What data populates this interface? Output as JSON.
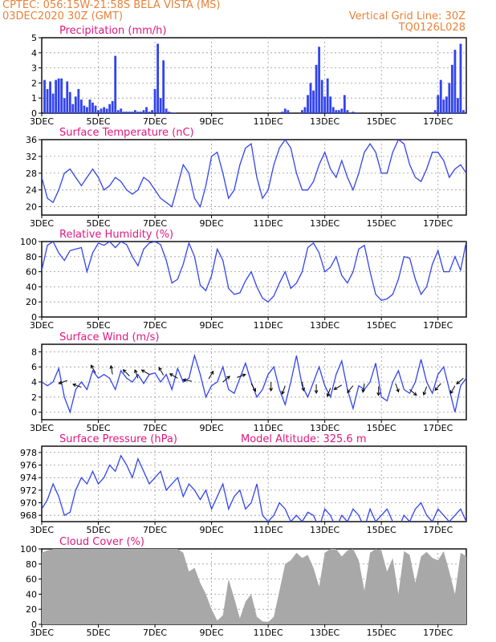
{
  "header": {
    "line1_left": "CPTEC:   056:15W-21:58S   BELA VISTA (MS)",
    "line2_left": "03DEC2020 30Z (GMT)",
    "line1_right": "Vertical Grid Line: 30Z",
    "line2_right": "TQ0126L028"
  },
  "colors": {
    "header": "#e8823a",
    "title": "#e0187f",
    "series": "#3344ee",
    "cloud": "#a8a8a8",
    "grid": "#999999"
  },
  "x_ticks": [
    "3DEC",
    "5DEC",
    "7DEC",
    "9DEC",
    "11DEC",
    "13DEC",
    "15DEC",
    "17DEC"
  ],
  "x_tick_days": [
    0,
    2,
    4,
    6,
    8,
    10,
    12,
    14
  ],
  "x_range_days": [
    0,
    15.0
  ],
  "chart_data": [
    {
      "id": "precip",
      "type": "bar",
      "title": "Precipitation (mm/h)",
      "ylim": [
        0,
        5
      ],
      "yticks": [
        0,
        1,
        2,
        3,
        4,
        5
      ],
      "x_days": [
        0.1,
        0.2,
        0.3,
        0.4,
        0.5,
        0.6,
        0.7,
        0.8,
        0.9,
        1.0,
        1.1,
        1.2,
        1.3,
        1.4,
        1.5,
        1.6,
        1.7,
        1.8,
        1.9,
        2.0,
        2.1,
        2.2,
        2.3,
        2.4,
        2.5,
        2.6,
        2.7,
        2.8,
        2.9,
        3.0,
        3.1,
        3.2,
        3.3,
        3.4,
        3.5,
        3.6,
        3.7,
        3.8,
        3.9,
        4.0,
        4.1,
        4.2,
        4.3,
        4.4,
        4.5,
        4.6,
        4.7,
        8.5,
        8.6,
        8.7,
        9.2,
        9.3,
        9.4,
        9.5,
        9.6,
        9.7,
        9.8,
        9.9,
        10.0,
        10.1,
        10.2,
        10.3,
        10.4,
        10.5,
        10.6,
        10.7,
        10.8,
        11.0,
        11.2,
        13.9,
        14.0,
        14.1,
        14.2,
        14.3,
        14.4,
        14.5,
        14.6,
        14.7,
        14.8,
        14.9
      ],
      "values": [
        2.2,
        1.6,
        2.1,
        1.3,
        2.2,
        2.3,
        2.3,
        1.0,
        2.1,
        1.4,
        0.6,
        1.1,
        1.6,
        0.9,
        0.5,
        0.4,
        0.9,
        0.7,
        0.5,
        0.2,
        0.3,
        0.4,
        0.3,
        0.6,
        0.8,
        3.8,
        0.2,
        0.3,
        0.1,
        0.1,
        0.1,
        0.1,
        0.2,
        0.1,
        0.1,
        0.2,
        0.4,
        0.1,
        0.2,
        1.6,
        4.6,
        1.0,
        3.5,
        0.3,
        0.1,
        0.05,
        0.02,
        0.1,
        0.3,
        0.2,
        0.2,
        0.4,
        1.2,
        2.0,
        1.5,
        3.2,
        4.4,
        2.2,
        1.1,
        2.3,
        1.1,
        0.4,
        0.2,
        0.2,
        0.3,
        1.2,
        0.2,
        0.1,
        0.05,
        0.2,
        1.2,
        2.2,
        0.9,
        1.1,
        2.0,
        3.2,
        4.2,
        1.0,
        4.6,
        0.2
      ]
    },
    {
      "id": "temp",
      "type": "line",
      "title": "Surface Temperature (nC)",
      "ylim": [
        18,
        36
      ],
      "yticks": [
        20,
        24,
        28,
        32,
        36
      ],
      "x_days": [
        0.0,
        0.2,
        0.4,
        0.6,
        0.8,
        1.0,
        1.2,
        1.4,
        1.6,
        1.8,
        2.0,
        2.2,
        2.4,
        2.6,
        2.8,
        3.0,
        3.2,
        3.4,
        3.6,
        3.8,
        4.0,
        4.2,
        4.4,
        4.6,
        4.8,
        5.0,
        5.2,
        5.4,
        5.6,
        5.8,
        6.0,
        6.2,
        6.4,
        6.6,
        6.8,
        7.0,
        7.2,
        7.4,
        7.6,
        7.8,
        8.0,
        8.2,
        8.4,
        8.6,
        8.8,
        9.0,
        9.2,
        9.4,
        9.6,
        9.8,
        10.0,
        10.2,
        10.4,
        10.6,
        10.8,
        11.0,
        11.2,
        11.4,
        11.6,
        11.8,
        12.0,
        12.2,
        12.4,
        12.6,
        12.8,
        13.0,
        13.2,
        13.4,
        13.6,
        13.8,
        14.0,
        14.2,
        14.4,
        14.6,
        14.8,
        15.0
      ],
      "values": [
        27,
        22,
        21,
        24,
        28,
        29,
        27,
        25,
        27,
        29,
        27,
        24,
        25,
        27,
        26,
        24,
        23,
        24,
        27,
        26,
        24,
        22,
        21,
        20,
        25,
        30,
        28,
        22,
        20,
        25,
        32,
        33,
        28,
        22,
        24,
        30,
        34,
        35,
        27,
        22,
        24,
        30,
        34,
        36,
        34,
        28,
        24,
        24,
        26,
        30,
        33,
        29,
        27,
        31,
        27,
        24,
        28,
        33,
        35,
        33,
        28,
        28,
        33,
        36,
        35,
        30,
        27,
        26,
        29,
        33,
        33,
        31,
        27,
        29,
        30,
        28
      ],
      "series_name": ""
    },
    {
      "id": "rh",
      "type": "line",
      "title": "Relative Humidity (%)",
      "ylim": [
        0,
        100
      ],
      "yticks": [
        0,
        20,
        40,
        60,
        80,
        100
      ],
      "x_days": [
        0.0,
        0.2,
        0.4,
        0.6,
        0.8,
        1.0,
        1.2,
        1.4,
        1.6,
        1.8,
        2.0,
        2.2,
        2.4,
        2.6,
        2.8,
        3.0,
        3.2,
        3.4,
        3.6,
        3.8,
        4.0,
        4.2,
        4.4,
        4.6,
        4.8,
        5.0,
        5.2,
        5.4,
        5.6,
        5.8,
        6.0,
        6.2,
        6.4,
        6.6,
        6.8,
        7.0,
        7.2,
        7.4,
        7.6,
        7.8,
        8.0,
        8.2,
        8.4,
        8.6,
        8.8,
        9.0,
        9.2,
        9.4,
        9.6,
        9.8,
        10.0,
        10.2,
        10.4,
        10.6,
        10.8,
        11.0,
        11.2,
        11.4,
        11.6,
        11.8,
        12.0,
        12.2,
        12.4,
        12.6,
        12.8,
        13.0,
        13.2,
        13.4,
        13.6,
        13.8,
        14.0,
        14.2,
        14.4,
        14.6,
        14.8,
        15.0
      ],
      "values": [
        62,
        95,
        100,
        85,
        75,
        88,
        90,
        92,
        60,
        85,
        98,
        95,
        100,
        92,
        100,
        96,
        80,
        68,
        90,
        98,
        100,
        96,
        75,
        45,
        50,
        70,
        98,
        80,
        42,
        35,
        55,
        90,
        75,
        38,
        30,
        32,
        48,
        60,
        40,
        25,
        20,
        28,
        45,
        60,
        38,
        45,
        60,
        92,
        98,
        85,
        60,
        66,
        80,
        55,
        45,
        60,
        90,
        95,
        60,
        30,
        22,
        24,
        30,
        50,
        80,
        78,
        50,
        30,
        40,
        70,
        88,
        60,
        60,
        80,
        62,
        100
      ]
    },
    {
      "id": "wind",
      "type": "line",
      "title": "Surface Wind (m/s)",
      "ylim": [
        -1,
        9
      ],
      "yticks": [
        0,
        2,
        4,
        6,
        8
      ],
      "x_days": [
        0.0,
        0.2,
        0.4,
        0.6,
        0.8,
        1.0,
        1.2,
        1.4,
        1.6,
        1.8,
        2.0,
        2.2,
        2.4,
        2.6,
        2.8,
        3.0,
        3.2,
        3.4,
        3.6,
        3.8,
        4.0,
        4.2,
        4.4,
        4.6,
        4.8,
        5.0,
        5.2,
        5.4,
        5.6,
        5.8,
        6.0,
        6.2,
        6.4,
        6.6,
        6.8,
        7.0,
        7.2,
        7.4,
        7.6,
        7.8,
        8.0,
        8.2,
        8.4,
        8.6,
        8.8,
        9.0,
        9.2,
        9.4,
        9.6,
        9.8,
        10.0,
        10.2,
        10.4,
        10.6,
        10.8,
        11.0,
        11.2,
        11.4,
        11.6,
        11.8,
        12.0,
        12.2,
        12.4,
        12.6,
        12.8,
        13.0,
        13.2,
        13.4,
        13.6,
        13.8,
        14.0,
        14.2,
        14.4,
        14.6,
        14.8,
        15.0
      ],
      "values": [
        4,
        3.5,
        4,
        5.8,
        2,
        0,
        3,
        4,
        3,
        5.5,
        4.5,
        5,
        4.5,
        3,
        5.5,
        4.5,
        4,
        5,
        3.8,
        5,
        5.2,
        4,
        5,
        3,
        5.8,
        4,
        4.5,
        7.5,
        5,
        2,
        3.5,
        4,
        6,
        3,
        2.5,
        4.5,
        6.5,
        4,
        2,
        3,
        5,
        6,
        3,
        1,
        4,
        7.5,
        3.5,
        2,
        4,
        6,
        3.5,
        2,
        5,
        6.8,
        3,
        0.5,
        3.5,
        3,
        4,
        6.5,
        2,
        1.5,
        4,
        5.5,
        3,
        2.5,
        4,
        7,
        4,
        2.5,
        5,
        6,
        3,
        0,
        3.5,
        4.5
      ],
      "arrows": [
        {
          "day": 0.9,
          "speed": 4.2,
          "angle": 200
        },
        {
          "day": 1.4,
          "speed": 3.3,
          "angle": 160
        },
        {
          "day": 1.9,
          "speed": 5.2,
          "angle": 120
        },
        {
          "day": 2.5,
          "speed": 5.0,
          "angle": 100
        },
        {
          "day": 3.1,
          "speed": 4.8,
          "angle": 135
        },
        {
          "day": 3.4,
          "speed": 4.5,
          "angle": 110
        },
        {
          "day": 3.8,
          "speed": 5.0,
          "angle": 150
        },
        {
          "day": 4.3,
          "speed": 4.9,
          "angle": 120
        },
        {
          "day": 4.8,
          "speed": 4.5,
          "angle": 150
        },
        {
          "day": 5.3,
          "speed": 4.1,
          "angle": 170
        },
        {
          "day": 5.9,
          "speed": 4.4,
          "angle": 60
        },
        {
          "day": 6.4,
          "speed": 4.0,
          "angle": 40
        },
        {
          "day": 6.9,
          "speed": 4.6,
          "angle": 20
        },
        {
          "day": 7.4,
          "speed": 3.8,
          "angle": 300
        },
        {
          "day": 8.1,
          "speed": 4.0,
          "angle": 270
        },
        {
          "day": 8.6,
          "speed": 3.5,
          "angle": 250
        },
        {
          "day": 9.2,
          "speed": 4.0,
          "angle": 280
        },
        {
          "day": 9.7,
          "speed": 3.7,
          "angle": 270
        },
        {
          "day": 10.2,
          "speed": 3.2,
          "angle": 250
        },
        {
          "day": 10.6,
          "speed": 3.6,
          "angle": 210
        },
        {
          "day": 11.0,
          "speed": 3.5,
          "angle": 230
        },
        {
          "day": 11.4,
          "speed": 3.8,
          "angle": 260
        },
        {
          "day": 11.9,
          "speed": 3.4,
          "angle": 270
        },
        {
          "day": 12.5,
          "speed": 3.8,
          "angle": 290
        },
        {
          "day": 13.0,
          "speed": 3.0,
          "angle": 320
        },
        {
          "day": 13.6,
          "speed": 3.4,
          "angle": 250
        },
        {
          "day": 14.1,
          "speed": 3.8,
          "angle": 230
        },
        {
          "day": 14.6,
          "speed": 3.5,
          "angle": 240
        },
        {
          "day": 14.9,
          "speed": 4.5,
          "angle": 220
        }
      ]
    },
    {
      "id": "pres",
      "type": "line",
      "title": "Surface Pressure (hPa)",
      "subtitle": "Model Altitude: 325.6  m",
      "ylim": [
        967,
        979
      ],
      "yticks": [
        968,
        970,
        972,
        974,
        976,
        978
      ],
      "x_days": [
        0.0,
        0.2,
        0.4,
        0.6,
        0.8,
        1.0,
        1.2,
        1.4,
        1.6,
        1.8,
        2.0,
        2.2,
        2.4,
        2.6,
        2.8,
        3.0,
        3.2,
        3.4,
        3.6,
        3.8,
        4.0,
        4.2,
        4.4,
        4.6,
        4.8,
        5.0,
        5.2,
        5.4,
        5.6,
        5.8,
        6.0,
        6.2,
        6.4,
        6.6,
        6.8,
        7.0,
        7.2,
        7.4,
        7.6,
        7.8,
        8.0,
        8.2,
        8.4,
        8.6,
        8.8,
        9.0,
        9.2,
        9.4,
        9.6,
        9.8,
        10.0,
        10.2,
        10.4,
        10.6,
        10.8,
        11.0,
        11.2,
        11.4,
        11.6,
        11.8,
        12.0,
        12.2,
        12.4,
        12.6,
        12.8,
        13.0,
        13.2,
        13.4,
        13.6,
        13.8,
        14.0,
        14.2,
        14.4,
        14.6,
        14.8,
        15.0
      ],
      "values": [
        969,
        970.5,
        973,
        971,
        968,
        968.5,
        972,
        974,
        973,
        975,
        973,
        974,
        976,
        975,
        977.5,
        976,
        974,
        977,
        975,
        973,
        974,
        975,
        972,
        973,
        974,
        971,
        973,
        972,
        970.5,
        972,
        969,
        971,
        973,
        969,
        971,
        972,
        969,
        970,
        973,
        968,
        967,
        968,
        970,
        969,
        967,
        968,
        967,
        968.5,
        968,
        966,
        969,
        968,
        966,
        968,
        967,
        969,
        968,
        966,
        969,
        967,
        968,
        969,
        967,
        966,
        968,
        967,
        969,
        970,
        968,
        967,
        969,
        968,
        967,
        968,
        969,
        967
      ]
    },
    {
      "id": "cloud",
      "type": "area",
      "title": "Cloud Cover (%)",
      "ylim": [
        0,
        100
      ],
      "yticks": [
        0,
        20,
        40,
        60,
        80,
        100
      ],
      "x_days": [
        0.0,
        0.2,
        0.4,
        0.6,
        0.8,
        1.0,
        1.2,
        1.4,
        1.6,
        1.8,
        2.0,
        2.2,
        2.4,
        2.6,
        2.8,
        3.0,
        3.2,
        3.4,
        3.6,
        3.8,
        4.0,
        4.2,
        4.4,
        4.6,
        4.8,
        5.0,
        5.2,
        5.4,
        5.6,
        5.8,
        6.0,
        6.2,
        6.4,
        6.6,
        6.8,
        7.0,
        7.2,
        7.4,
        7.6,
        7.8,
        8.0,
        8.2,
        8.4,
        8.6,
        8.8,
        9.0,
        9.2,
        9.4,
        9.6,
        9.8,
        10.0,
        10.2,
        10.4,
        10.6,
        10.8,
        11.0,
        11.2,
        11.4,
        11.6,
        11.8,
        12.0,
        12.2,
        12.4,
        12.6,
        12.8,
        13.0,
        13.2,
        13.4,
        13.6,
        13.8,
        14.0,
        14.2,
        14.4,
        14.6,
        14.8,
        15.0
      ],
      "values": [
        95,
        98,
        100,
        100,
        100,
        100,
        100,
        100,
        100,
        100,
        100,
        100,
        100,
        100,
        100,
        100,
        100,
        100,
        100,
        100,
        100,
        100,
        100,
        100,
        100,
        95,
        70,
        75,
        55,
        40,
        20,
        5,
        12,
        60,
        35,
        8,
        30,
        40,
        10,
        4,
        3,
        10,
        45,
        80,
        85,
        95,
        88,
        92,
        75,
        50,
        95,
        100,
        100,
        90,
        98,
        100,
        85,
        45,
        95,
        100,
        98,
        70,
        88,
        40,
        97,
        92,
        55,
        90,
        96,
        88,
        85,
        97,
        70,
        40,
        95,
        90
      ],
      "series_name": ""
    }
  ]
}
